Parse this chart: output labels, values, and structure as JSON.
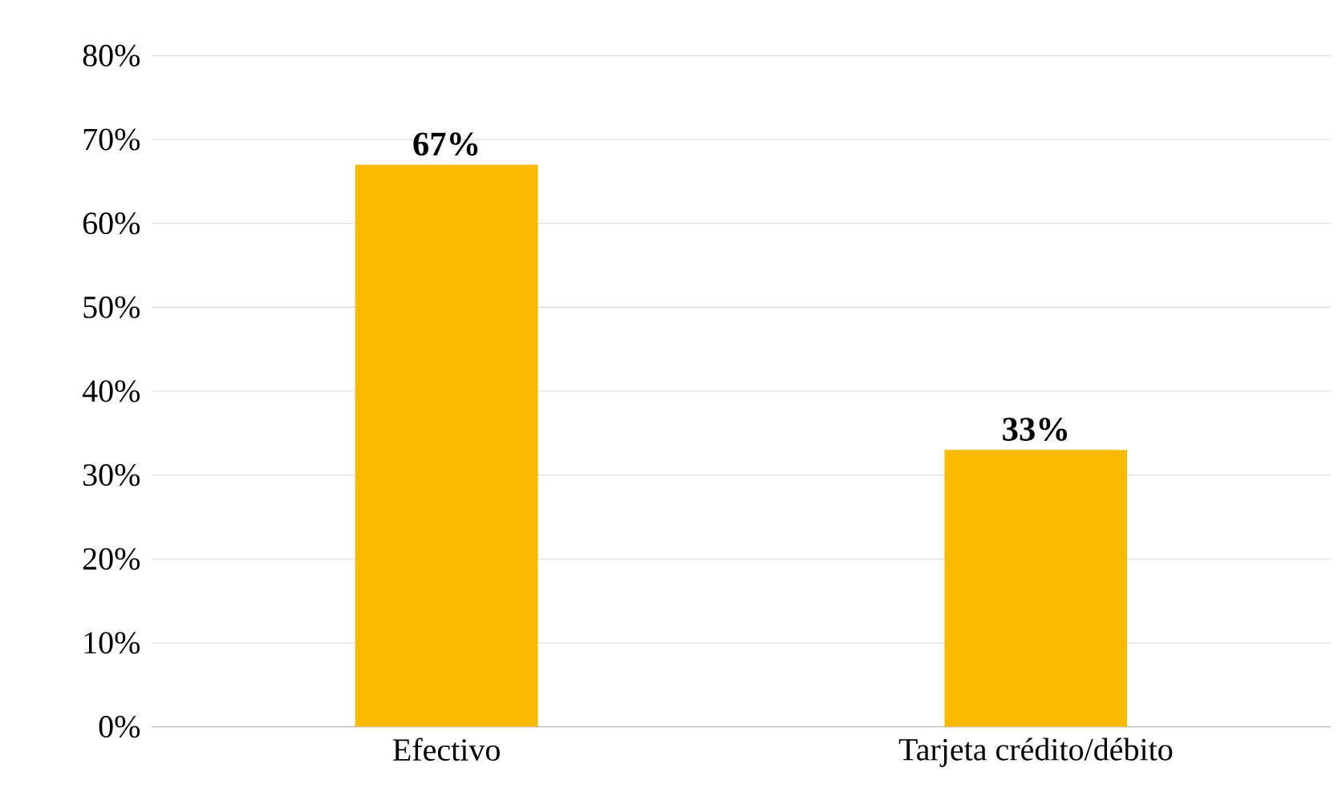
{
  "chart_data": {
    "type": "bar",
    "categories": [
      "Efectivo",
      "Tarjeta crédito/débito"
    ],
    "values": [
      67,
      33
    ],
    "color": "#fbba00",
    "value_labels": [
      "67%",
      "33%"
    ],
    "ylim": [
      0,
      80
    ],
    "yticks": [
      {
        "value": 0,
        "label": "0%"
      },
      {
        "value": 10,
        "label": "10%"
      },
      {
        "value": 20,
        "label": "20%"
      },
      {
        "value": 30,
        "label": "30%"
      },
      {
        "value": 40,
        "label": "40%"
      },
      {
        "value": 50,
        "label": "50%"
      },
      {
        "value": 60,
        "label": "60%"
      },
      {
        "value": 70,
        "label": "70%"
      },
      {
        "value": 80,
        "label": "80%"
      }
    ],
    "grid": "y"
  }
}
